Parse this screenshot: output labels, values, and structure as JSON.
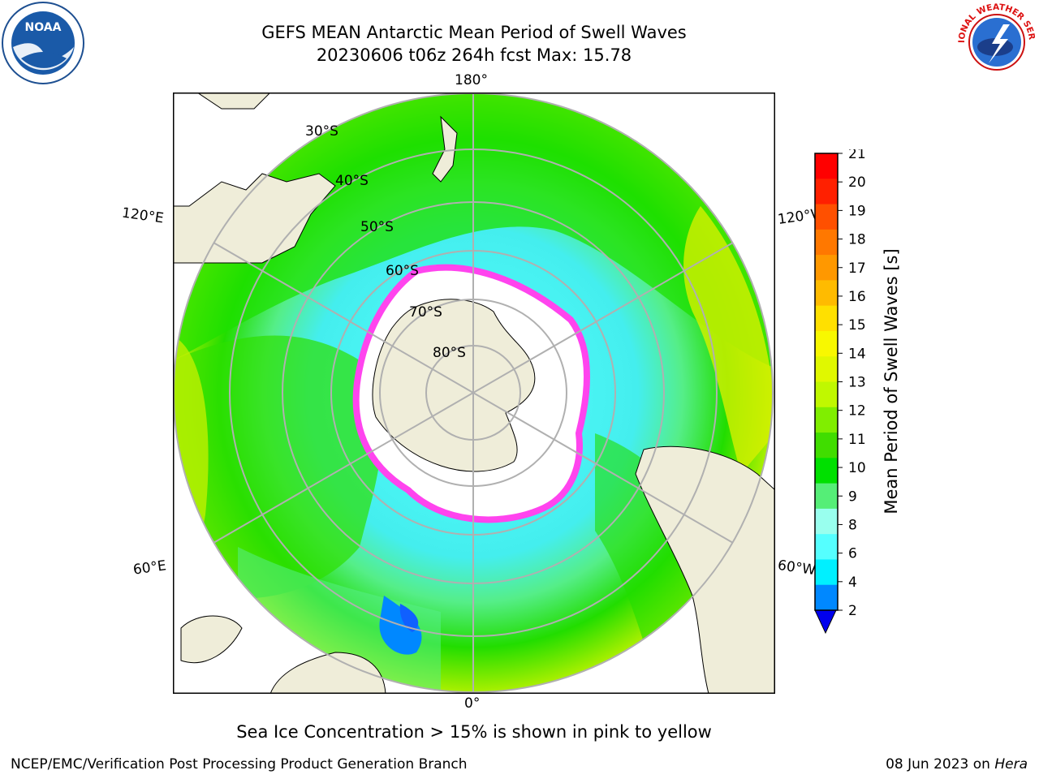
{
  "header": {
    "title_line1": "GEFS MEAN Antarctic Mean Period of Swell Waves",
    "title_line2": "20230606 t06z 264h fcst   Max: 15.78"
  },
  "logos": {
    "left": {
      "name": "noaa-logo",
      "text": "NOAA"
    },
    "right": {
      "name": "nws-logo",
      "text": "NATIONAL WEATHER SERVICE"
    }
  },
  "map": {
    "projection": "south-polar-stereographic",
    "longitude_labels": [
      "180°",
      "120°E",
      "120°W",
      "60°E",
      "60°W",
      "0°"
    ],
    "latitude_labels": [
      "30°S",
      "40°S",
      "50°S",
      "60°S",
      "70°S",
      "80°S"
    ],
    "colors": {
      "land": "#efedd9",
      "grid": "#b0b0b0",
      "ice_edge": "#ff44ee"
    }
  },
  "colorbar": {
    "title": "Mean Period of Swell Waves [s]",
    "ticks": [
      "21",
      "20",
      "19",
      "18",
      "17",
      "16",
      "15",
      "14",
      "13",
      "12",
      "11",
      "10",
      "9",
      "8",
      "6",
      "4",
      "2"
    ],
    "colors_top_to_bottom": [
      "#ff0000",
      "#ff2000",
      "#ff5000",
      "#ff7800",
      "#ff9800",
      "#ffbb00",
      "#ffe000",
      "#f8f800",
      "#e0f800",
      "#c0f800",
      "#80ee00",
      "#40dd00",
      "#00e000",
      "#55ee77",
      "#99ffee",
      "#55ffff",
      "#00f0ff",
      "#0088ff"
    ],
    "extend_color": "#0000ee"
  },
  "caption": "Sea Ice Concentration > 15% is shown in pink to yellow",
  "footer": {
    "left": "NCEP/EMC/Verification Post Processing Product Generation Branch",
    "right_prefix": "08 Jun 2023 on ",
    "right_host": "Hera"
  }
}
